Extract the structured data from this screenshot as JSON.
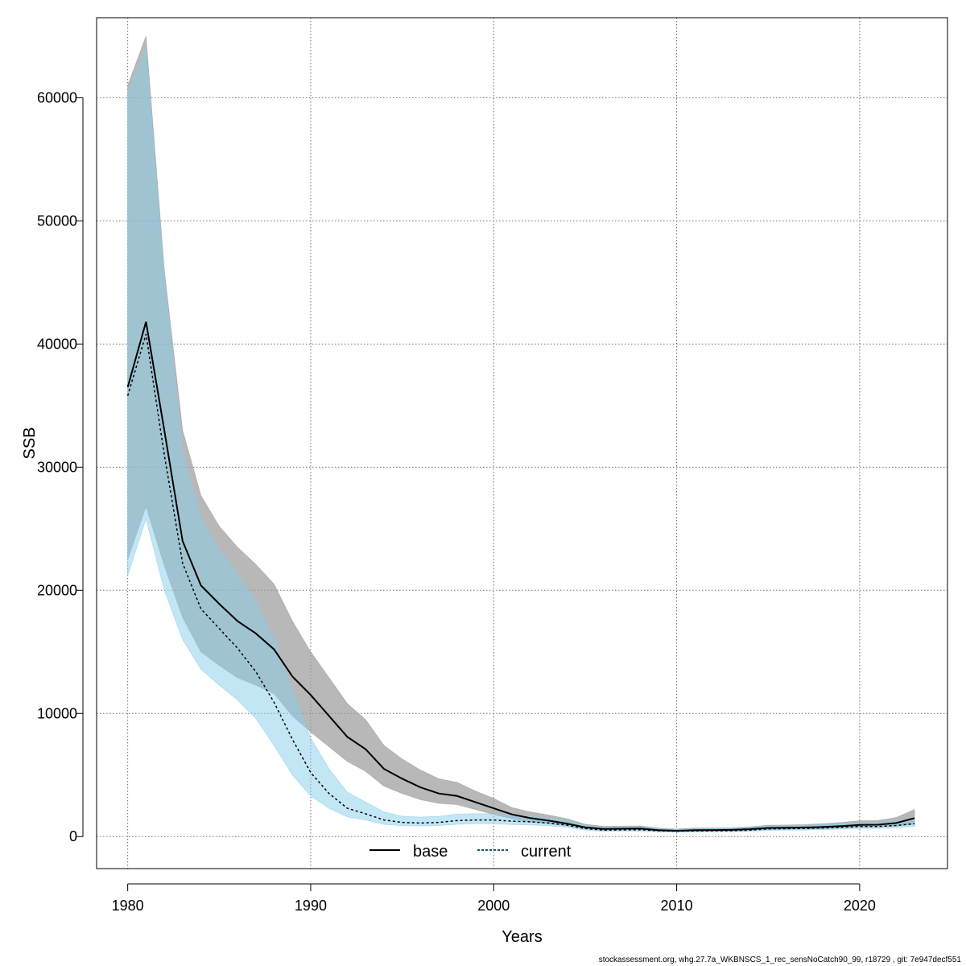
{
  "chart_data": {
    "type": "line",
    "title": "",
    "xlabel": "Years",
    "ylabel": "SSB",
    "xlim": [
      1978.3,
      2024.8
    ],
    "ylim": [
      -2600,
      66500
    ],
    "x_ticks": [
      1980,
      1990,
      2000,
      2010,
      2020
    ],
    "y_ticks": [
      0,
      10000,
      20000,
      30000,
      40000,
      50000,
      60000
    ],
    "grid": true,
    "legend_position": "bottom-center",
    "x": [
      1980,
      1981,
      1982,
      1983,
      1984,
      1985,
      1986,
      1987,
      1988,
      1989,
      1990,
      1991,
      1992,
      1993,
      1994,
      1995,
      1996,
      1997,
      1998,
      1999,
      2000,
      2001,
      2002,
      2003,
      2004,
      2005,
      2006,
      2007,
      2008,
      2009,
      2010,
      2011,
      2012,
      2013,
      2014,
      2015,
      2016,
      2017,
      2018,
      2019,
      2020,
      2021,
      2022,
      2023
    ],
    "series": [
      {
        "name": "base",
        "line_style": "solid",
        "line_color": "#000000",
        "band_color": "#9a9a9a",
        "values": [
          36500,
          41800,
          33000,
          24000,
          20400,
          18900,
          17500,
          16500,
          15200,
          13000,
          11500,
          9800,
          8100,
          7100,
          5500,
          4700,
          4000,
          3500,
          3300,
          2800,
          2300,
          1800,
          1500,
          1300,
          1050,
          750,
          620,
          640,
          650,
          520,
          470,
          520,
          530,
          550,
          600,
          700,
          720,
          740,
          780,
          850,
          950,
          960,
          1100,
          1500
        ],
        "lower": [
          22500,
          26800,
          22000,
          17800,
          15000,
          13900,
          12900,
          12300,
          11600,
          9800,
          8500,
          7300,
          6100,
          5300,
          4100,
          3500,
          3000,
          2700,
          2600,
          2200,
          1800,
          1450,
          1200,
          1050,
          870,
          620,
          520,
          540,
          560,
          450,
          400,
          440,
          450,
          460,
          500,
          580,
          600,
          610,
          650,
          700,
          780,
          790,
          850,
          1000
        ],
        "upper": [
          61000,
          65000,
          46000,
          33000,
          27700,
          25200,
          23500,
          22100,
          20500,
          17500,
          15000,
          12900,
          10800,
          9500,
          7400,
          6300,
          5400,
          4700,
          4400,
          3700,
          3100,
          2350,
          2000,
          1750,
          1450,
          1000,
          830,
          850,
          860,
          690,
          620,
          690,
          700,
          720,
          790,
          920,
          940,
          970,
          1040,
          1140,
          1290,
          1300,
          1550,
          2200
        ]
      },
      {
        "name": "current",
        "line_style": "dashed",
        "line_color": "#000000",
        "band_color": "#87ceeb",
        "values": [
          35800,
          40800,
          31000,
          22200,
          18500,
          16900,
          15300,
          13400,
          10900,
          7900,
          5200,
          3500,
          2300,
          1850,
          1350,
          1150,
          1100,
          1150,
          1300,
          1350,
          1350,
          1250,
          1200,
          1100,
          930,
          650,
          520,
          540,
          550,
          470,
          440,
          460,
          470,
          480,
          520,
          620,
          640,
          660,
          700,
          760,
          820,
          820,
          900,
          1050
        ],
        "lower": [
          21200,
          25800,
          20000,
          16000,
          13600,
          12300,
          11100,
          9600,
          7400,
          5000,
          3300,
          2300,
          1600,
          1350,
          1000,
          880,
          860,
          900,
          1000,
          1050,
          1050,
          970,
          950,
          880,
          750,
          520,
          420,
          440,
          450,
          380,
          360,
          370,
          380,
          390,
          420,
          500,
          520,
          530,
          560,
          610,
          660,
          660,
          710,
          820
        ],
        "upper": [
          60500,
          64000,
          45500,
          31200,
          25800,
          23300,
          21300,
          19100,
          16000,
          11900,
          8000,
          5500,
          3600,
          2800,
          2000,
          1650,
          1580,
          1650,
          1830,
          1850,
          1850,
          1720,
          1650,
          1520,
          1300,
          900,
          720,
          750,
          760,
          650,
          610,
          640,
          650,
          670,
          720,
          860,
          890,
          920,
          970,
          1050,
          1140,
          1140,
          1260,
          1480
        ]
      }
    ]
  },
  "footer_text": "stockassessment.org, whg.27.7a_WKBNSCS_1_rec_sensNoCatch90_99, r18729 , git: 7e947decf551"
}
